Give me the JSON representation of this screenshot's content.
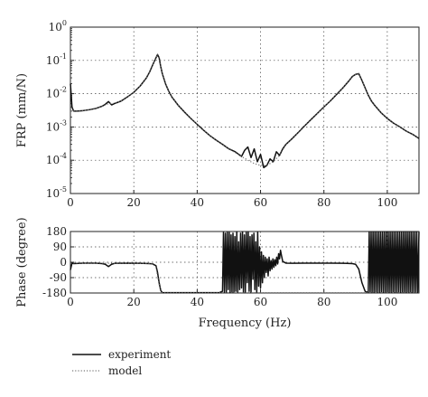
{
  "chart_data": [
    {
      "type": "line",
      "xlabel": "",
      "ylabel": "FRP (mm/N)",
      "yscale": "log",
      "xlim": [
        0,
        110
      ],
      "ylim": [
        1e-05,
        1
      ],
      "grid": true,
      "x_ticks": [
        "0",
        "20",
        "40",
        "60",
        "80",
        "100"
      ],
      "y_tick_base": "10",
      "y_tick_exponents": [
        "0",
        "-1",
        "-2",
        "-3",
        "-4",
        "-5"
      ],
      "series": [
        {
          "name": "experiment",
          "x": [
            0,
            0.5,
            1,
            2,
            4,
            6,
            8,
            10,
            11,
            12,
            13,
            14,
            16,
            18,
            20,
            22,
            24,
            25,
            26,
            27,
            27.5,
            28,
            28.5,
            29,
            30,
            31,
            32,
            34,
            36,
            38,
            40,
            42,
            44,
            46,
            48,
            50,
            52,
            54,
            55,
            56,
            57,
            58,
            59,
            60,
            61,
            62,
            63,
            64,
            65,
            66,
            67,
            68,
            70,
            72,
            74,
            76,
            78,
            80,
            82,
            84,
            86,
            88,
            89,
            90,
            91,
            92,
            93,
            94,
            95,
            96,
            98,
            100,
            102,
            104,
            106,
            108,
            110
          ],
          "y": [
            0.02,
            0.004,
            0.003,
            0.003,
            0.0031,
            0.0033,
            0.0036,
            0.0042,
            0.0048,
            0.0058,
            0.0046,
            0.0051,
            0.006,
            0.008,
            0.011,
            0.017,
            0.03,
            0.045,
            0.075,
            0.12,
            0.15,
            0.12,
            0.065,
            0.04,
            0.02,
            0.012,
            0.008,
            0.0045,
            0.0028,
            0.0018,
            0.0012,
            0.0008,
            0.00055,
            0.0004,
            0.0003,
            0.00022,
            0.00018,
            0.00013,
            0.0002,
            0.00025,
            0.00012,
            0.00022,
            9e-05,
            0.00015,
            6e-05,
            7e-05,
            0.00011,
            9e-05,
            0.00018,
            0.00014,
            0.00022,
            0.0003,
            0.00045,
            0.0007,
            0.0011,
            0.0017,
            0.0026,
            0.004,
            0.006,
            0.0095,
            0.015,
            0.025,
            0.033,
            0.038,
            0.04,
            0.025,
            0.015,
            0.009,
            0.006,
            0.0045,
            0.0027,
            0.0018,
            0.0013,
            0.001,
            0.00075,
            0.0006,
            0.00045
          ]
        },
        {
          "name": "model",
          "x": [
            0,
            2,
            4,
            6,
            8,
            10,
            12,
            14,
            16,
            18,
            20,
            22,
            24,
            25,
            26,
            27,
            27.5,
            28,
            28.5,
            29,
            30,
            31,
            32,
            34,
            36,
            38,
            40,
            42,
            44,
            46,
            48,
            50,
            52,
            54,
            56,
            58,
            60,
            62,
            64,
            66,
            68,
            70,
            72,
            74,
            76,
            78,
            80,
            82,
            84,
            86,
            88,
            89,
            90,
            91,
            92,
            93,
            94,
            95,
            96,
            98,
            100,
            102,
            104,
            106,
            108,
            110
          ],
          "y": [
            0.003,
            0.003,
            0.0031,
            0.0033,
            0.0036,
            0.0042,
            0.005,
            0.0051,
            0.006,
            0.008,
            0.011,
            0.017,
            0.03,
            0.045,
            0.075,
            0.12,
            0.15,
            0.12,
            0.065,
            0.04,
            0.02,
            0.012,
            0.008,
            0.0045,
            0.0028,
            0.0018,
            0.0012,
            0.0008,
            0.00055,
            0.0004,
            0.0003,
            0.00022,
            0.00017,
            0.00013,
            0.0001,
            8e-05,
            7e-05,
            7e-05,
            9e-05,
            0.00014,
            0.0003,
            0.00045,
            0.0007,
            0.0011,
            0.0017,
            0.0026,
            0.004,
            0.006,
            0.0095,
            0.015,
            0.025,
            0.033,
            0.038,
            0.04,
            0.025,
            0.015,
            0.009,
            0.006,
            0.0045,
            0.0027,
            0.0018,
            0.0013,
            0.001,
            0.00075,
            0.0006,
            0.00045
          ]
        }
      ]
    },
    {
      "type": "line",
      "xlabel": "Frequency (Hz)",
      "ylabel": "Phase (degree)",
      "xlim": [
        0,
        110
      ],
      "ylim": [
        -180,
        180
      ],
      "grid": true,
      "x_ticks": [
        "0",
        "20",
        "40",
        "60",
        "80",
        "100"
      ],
      "y_ticks": [
        "180",
        "90",
        "0",
        "-90",
        "-180"
      ],
      "series": [
        {
          "name": "experiment",
          "x": [
            0,
            0.5,
            1,
            4,
            8,
            10,
            11,
            12,
            13,
            14,
            18,
            22,
            25,
            26,
            27,
            27.5,
            28,
            28.5,
            29,
            32,
            36,
            40,
            44,
            47,
            48,
            48.3,
            48.6,
            48.9,
            49.2,
            49.5,
            49.8,
            50.1,
            50.4,
            50.7,
            51,
            51.3,
            51.6,
            51.9,
            52.2,
            52.5,
            52.8,
            53.1,
            53.4,
            53.7,
            54,
            54.3,
            54.6,
            54.9,
            55.2,
            55.5,
            55.8,
            56.1,
            56.4,
            56.7,
            57,
            57.3,
            57.6,
            57.9,
            58.2,
            58.5,
            58.8,
            59.1,
            59.4,
            59.7,
            60,
            60.3,
            60.6,
            60.9,
            61.2,
            61.5,
            61.8,
            62.1,
            62.4,
            62.7,
            63,
            63.3,
            63.6,
            63.9,
            64.2,
            64.5,
            64.8,
            65.1,
            65.4,
            65.7,
            66,
            66.3,
            66.6,
            67,
            68,
            70,
            74,
            78,
            82,
            86,
            89,
            90,
            91,
            92,
            93,
            94,
            94.3,
            94.6,
            94.9,
            95.2,
            95.5,
            95.8,
            96.1,
            96.4,
            96.7,
            97,
            97.3,
            97.6,
            97.9,
            98.2,
            98.5,
            98.8,
            99.1,
            99.4,
            99.7,
            100,
            100.3,
            100.6,
            100.9,
            101.2,
            101.5,
            101.8,
            102.1,
            102.4,
            102.7,
            103,
            103.3,
            103.6,
            103.9,
            104.2,
            104.5,
            104.8,
            105.1,
            105.4,
            105.7,
            106,
            106.3,
            106.6,
            106.9,
            107.2,
            107.5,
            107.8,
            108.1,
            108.4,
            108.7,
            109,
            109.3,
            109.6,
            110
          ],
          "y": [
            -45,
            -5,
            -8,
            -5,
            -5,
            -8,
            -12,
            -25,
            -12,
            -6,
            -5,
            -6,
            -8,
            -10,
            -20,
            -60,
            -120,
            -165,
            -178,
            -178,
            -178,
            -178,
            -178,
            -178,
            -170,
            175,
            -175,
            170,
            -178,
            175,
            -160,
            175,
            -178,
            160,
            -175,
            170,
            -178,
            150,
            -170,
            178,
            -178,
            120,
            -160,
            170,
            -150,
            178,
            -175,
            160,
            -178,
            175,
            -120,
            178,
            -170,
            150,
            -178,
            160,
            -100,
            170,
            -160,
            120,
            -178,
            175,
            -140,
            90,
            -150,
            60,
            -120,
            40,
            -90,
            30,
            -60,
            20,
            -80,
            30,
            -50,
            10,
            -40,
            20,
            -30,
            15,
            -20,
            30,
            -10,
            50,
            20,
            70,
            40,
            5,
            -5,
            -6,
            -5,
            -5,
            -5,
            -6,
            -8,
            -12,
            -40,
            -120,
            -170,
            -178,
            178,
            -178,
            178,
            -178,
            178,
            -178,
            178,
            -178,
            178,
            -178,
            178,
            -178,
            178,
            -178,
            178,
            -178,
            178,
            -178,
            178,
            -178,
            178,
            -178,
            178,
            -178,
            178,
            -178,
            178,
            -178,
            178,
            -178,
            178,
            -178,
            178,
            -178,
            178,
            -178,
            178,
            -178,
            178,
            -178,
            178,
            -178,
            178,
            -178,
            178,
            -178,
            178,
            -178,
            178,
            -178,
            178,
            -178,
            178
          ],
          "y_is_wrapped": true
        },
        {
          "name": "model",
          "x": [
            0,
            4,
            8,
            12,
            16,
            20,
            24,
            26,
            27,
            27.5,
            28,
            28.5,
            29,
            32,
            40,
            50,
            60,
            70,
            80,
            88,
            90,
            91,
            92,
            93,
            94,
            100,
            110
          ],
          "y": [
            -5,
            -5,
            -5,
            -6,
            -5,
            -5,
            -7,
            -10,
            -30,
            -80,
            -130,
            -170,
            -178,
            -178,
            -178,
            -178,
            -178,
            -178,
            -178,
            -178,
            -178,
            -178,
            -178,
            -178,
            -178,
            -178,
            -178
          ]
        }
      ]
    }
  ],
  "legend": {
    "placement": "bottom-left",
    "entries": [
      {
        "name": "experiment",
        "style": "solid"
      },
      {
        "name": "model",
        "style": "dotted"
      }
    ]
  }
}
